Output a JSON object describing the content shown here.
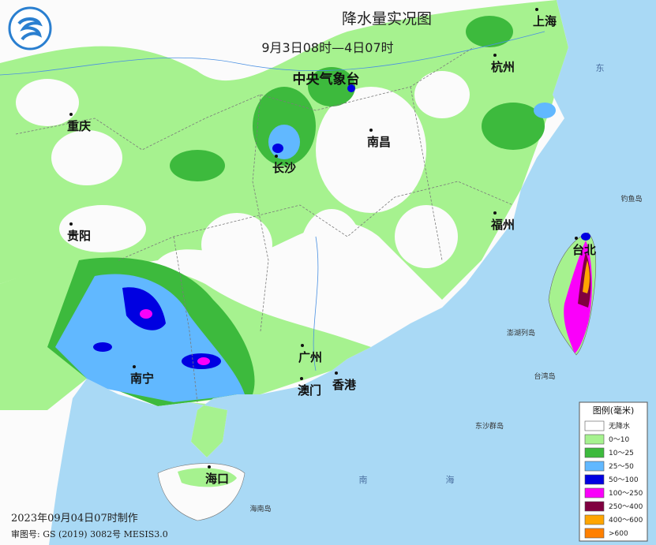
{
  "header": {
    "title": "降水量实况图",
    "subtitle": "9月3日08时—4日07时",
    "agency": "中央气象台"
  },
  "cities": [
    "上海",
    "杭州",
    "长沙",
    "南昌",
    "重庆",
    "贵阳",
    "福州",
    "台北",
    "南宁",
    "广州",
    "澳门",
    "香港",
    "海口"
  ],
  "places": [
    "钓鱼岛",
    "澎湖列岛",
    "台湾岛",
    "东沙群岛",
    "海南岛",
    "南",
    "海",
    "东"
  ],
  "legend": {
    "title": "图例(毫米)",
    "items": [
      {
        "label": "无降水",
        "color": "#ffffff"
      },
      {
        "label": "0～10",
        "color": "#a6f28f"
      },
      {
        "label": "10～25",
        "color": "#3dba3d"
      },
      {
        "label": "25～50",
        "color": "#61b8ff"
      },
      {
        "label": "50～100",
        "color": "#0000e1"
      },
      {
        "label": "100～250",
        "color": "#fa00fa"
      },
      {
        "label": "250～400",
        "color": "#800040"
      },
      {
        "label": "400～600",
        "color": "#ffa500"
      },
      {
        "label": ">600",
        "color": "#ff8000"
      }
    ]
  },
  "footer": {
    "made": "2023年09月04日07时制作",
    "approval": "审图号: GS (2019) 3082号 MESIS3.0"
  }
}
